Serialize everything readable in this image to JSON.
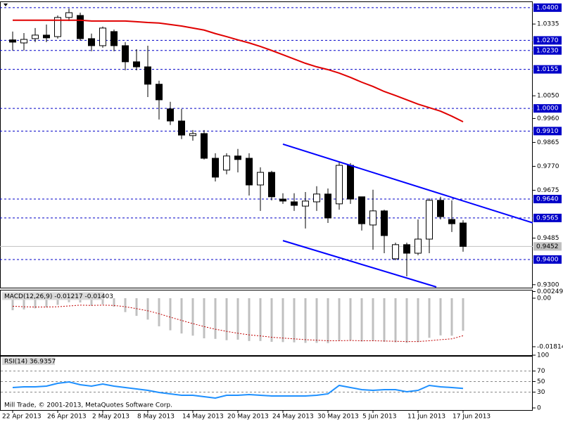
{
  "chart_data": [
    {
      "type": "candlestick",
      "categories": [
        "22 Apr 2013",
        null,
        null,
        null,
        "26 Apr 2013",
        null,
        null,
        null,
        "2 May 2013",
        null,
        null,
        null,
        "8 May 2013",
        null,
        null,
        null,
        "14 May 2013",
        null,
        null,
        null,
        "20 May 2013",
        null,
        null,
        null,
        "24 May 2013",
        null,
        null,
        null,
        "30 May 2013",
        null,
        null,
        null,
        "5 Jun 2013",
        null,
        null,
        null,
        "11 Jun 2013",
        null,
        null,
        null,
        "17 Jun 2013"
      ],
      "open": [
        1.0272,
        1.026,
        1.0277,
        1.0291,
        1.0285,
        1.0361,
        1.0369,
        1.0277,
        1.0249,
        1.0305,
        1.0249,
        1.0185,
        1.0165,
        1.0096,
        0.9998,
        0.995,
        0.9892,
        0.99,
        0.9802,
        0.9755,
        0.9811,
        0.9802,
        0.9696,
        0.9746,
        0.964,
        0.9629,
        0.9612,
        0.9629,
        0.966,
        0.9621,
        0.9774,
        0.9649,
        0.9537,
        0.9593,
        0.9403,
        0.9459,
        0.9425,
        0.9481,
        0.9635,
        0.9559,
        0.9545
      ],
      "high": [
        1.0305,
        1.0299,
        1.0319,
        1.0333,
        1.0369,
        1.0397,
        1.038,
        1.0297,
        1.0325,
        1.0313,
        1.0263,
        1.0235,
        1.0249,
        1.011,
        1.0026,
        0.9998,
        0.9914,
        0.9914,
        0.9822,
        0.9822,
        0.9839,
        0.9822,
        0.9766,
        0.9752,
        0.9663,
        0.9663,
        0.9668,
        0.9691,
        0.9682,
        0.9788,
        0.9783,
        0.9649,
        0.9677,
        0.9598,
        0.9467,
        0.9467,
        0.9559,
        0.9643,
        0.9649,
        0.9635,
        0.9556
      ],
      "low": [
        1.023,
        1.023,
        1.0263,
        1.0263,
        1.0277,
        1.0347,
        1.0269,
        1.0227,
        1.0241,
        1.0227,
        1.0151,
        1.0151,
        1.0045,
        0.9956,
        0.9934,
        0.9878,
        0.9872,
        0.9797,
        0.971,
        0.9738,
        0.9746,
        0.9654,
        0.9593,
        0.9635,
        0.9621,
        0.9593,
        0.9523,
        0.9593,
        0.9545,
        0.9598,
        0.9621,
        0.9515,
        0.9439,
        0.9425,
        0.9397,
        0.9333,
        0.9417,
        0.9425,
        0.9559,
        0.9509,
        0.9431
      ],
      "close": [
        1.0263,
        1.0274,
        1.0291,
        1.028,
        1.0361,
        1.038,
        1.0277,
        1.0249,
        1.0319,
        1.0249,
        1.0185,
        1.0165,
        1.0096,
        1.0034,
        0.995,
        0.9894,
        0.99,
        0.9802,
        0.9727,
        0.9811,
        0.9797,
        0.9696,
        0.9746,
        0.9649,
        0.9632,
        0.9615,
        0.9632,
        0.966,
        0.9565,
        0.9774,
        0.964,
        0.9542,
        0.9593,
        0.9495,
        0.9459,
        0.9425,
        0.9481,
        0.9635,
        0.957,
        0.9542,
        0.9452
      ],
      "up_color": "#ffffff",
      "down_color": "#000000",
      "ma": {
        "color": "#e00000",
        "values": [
          1.035,
          1.035,
          1.035,
          1.035,
          1.035,
          1.035,
          1.035,
          1.0347,
          1.0347,
          1.0347,
          1.0347,
          1.0344,
          1.0341,
          1.0339,
          1.0333,
          1.0327,
          1.0319,
          1.0311,
          1.0297,
          1.0285,
          1.0272,
          1.026,
          1.0246,
          1.023,
          1.0213,
          1.0196,
          1.0179,
          1.0165,
          1.0154,
          1.014,
          1.0123,
          1.0104,
          1.0087,
          1.0067,
          1.0051,
          1.0034,
          1.0017,
          1.0003,
          0.9989,
          0.9969,
          0.9947
        ]
      },
      "channel_color": "#0000ff",
      "channel": [
        {
          "x": [
            24,
            46.375
          ],
          "y": [
            0.9858,
            0.9543
          ]
        },
        {
          "x": [
            24,
            37.625
          ],
          "y": [
            0.9475,
            0.9291
          ]
        }
      ],
      "level_color": "#0000c8",
      "levels": [
        {
          "value": 1.04,
          "label": "1.0400"
        },
        {
          "value": 1.027,
          "label": "1.0270"
        },
        {
          "value": 1.023,
          "label": "1.0230"
        },
        1.0155,
        {
          "value": 1,
          "label": "1.0000"
        },
        {
          "value": 0.991,
          "label": "0.9910"
        },
        {
          "value": 0.964,
          "label": "0.9640"
        },
        0.9565,
        {
          "value": 0.94,
          "label": "0.9400"
        }
      ],
      "current_price": 0.9452,
      "current_color": "#c0c0c0",
      "ylim": [
        0.9291,
        1.0422
      ],
      "yticks": [
        1.0335,
        {
          "value": 1.005,
          "label": "1.0050"
        },
        {
          "value": 0.996,
          "label": "0.9960"
        },
        0.9865,
        {
          "value": 0.977,
          "label": "0.9770"
        },
        0.9675,
        0.9485,
        {
          "value": 0.93,
          "label": "0.9300"
        }
      ]
    },
    {
      "type": "macd",
      "title": "MACD(12,26,9) -0.01217 -0.01403",
      "series": [
        {
          "color": "#c0c0c0",
          "values": [
            -0.0045,
            -0.0042,
            -0.0038,
            -0.0034,
            -0.0025,
            -0.0015,
            -0.0016,
            -0.0028,
            -0.0023,
            -0.0032,
            -0.0052,
            -0.0066,
            -0.008,
            -0.0105,
            -0.012,
            -0.0132,
            -0.014,
            -0.015,
            -0.0152,
            -0.0157,
            -0.0155,
            -0.016,
            -0.016,
            -0.0163,
            -0.0164,
            -0.0165,
            -0.0167,
            -0.0167,
            -0.0168,
            -0.0158,
            -0.0157,
            -0.0162,
            -0.016,
            -0.0163,
            -0.0165,
            -0.0167,
            -0.0164,
            -0.0148,
            -0.0139,
            -0.014,
            -0.01217
          ]
        },
        {
          "color": "#c00000",
          "values": [
            -0.003,
            -0.0032,
            -0.0033,
            -0.0033,
            -0.0032,
            -0.0029,
            -0.0026,
            -0.0027,
            -0.0026,
            -0.0027,
            -0.0032,
            -0.0039,
            -0.0047,
            -0.0058,
            -0.0071,
            -0.0083,
            -0.0095,
            -0.0106,
            -0.0116,
            -0.0124,
            -0.0131,
            -0.0137,
            -0.0141,
            -0.0146,
            -0.0149,
            -0.0152,
            -0.0155,
            -0.0157,
            -0.0159,
            -0.0159,
            -0.0158,
            -0.0159,
            -0.0159,
            -0.016,
            -0.0161,
            -0.0162,
            -0.0162,
            -0.0159,
            -0.0155,
            -0.0152,
            -0.01403
          ]
        }
      ],
      "ylim": [
        -0.0213,
        0.00249
      ],
      "yticks": [
        0.00249,
        {
          "value": 0,
          "label": "0.00"
        },
        -0.01814
      ]
    },
    {
      "type": "line",
      "title": "RSI(14) 36.9357",
      "color": "#1e90ff",
      "values": [
        38.7,
        40,
        40,
        41.3,
        46.7,
        49.3,
        44,
        41.3,
        45.3,
        41.3,
        38.7,
        36,
        33.3,
        29.3,
        26.7,
        24,
        24,
        21.3,
        18.7,
        24,
        24,
        25.3,
        24,
        22.7,
        22.7,
        22.7,
        22.7,
        24,
        26.7,
        42.7,
        38.7,
        34.7,
        33.3,
        34.7,
        34.7,
        30.7,
        33.3,
        42.7,
        40,
        38.7,
        36.9357
      ],
      "ylim": [
        0,
        100
      ],
      "yticks": [
        100,
        70,
        50,
        30,
        0
      ],
      "footer": "Mill Trade, © 2001-2013, MetaQuotes Software Corp."
    }
  ]
}
